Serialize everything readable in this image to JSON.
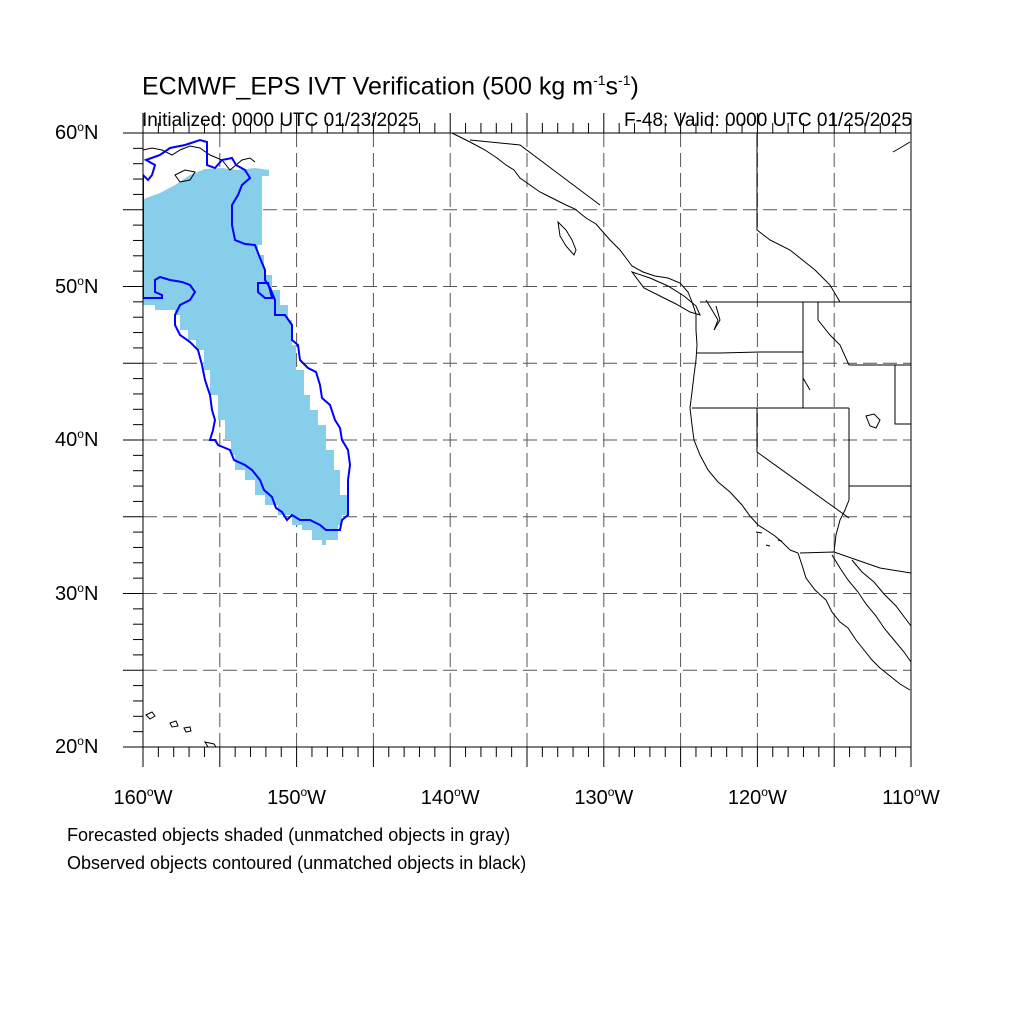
{
  "title": {
    "prefix": "ECMWF_EPS IVT Verification (500 kg m",
    "exp1": "-1",
    "mid": "s",
    "exp2": "-1",
    "suffix": ")"
  },
  "initialized": "Initialized: 0000 UTC 01/23/2025",
  "valid": "F-48: Valid: 0000 UTC 01/25/2025",
  "lat_labels": [
    {
      "text": "60",
      "hemi": "N"
    },
    {
      "text": "50",
      "hemi": "N"
    },
    {
      "text": "40",
      "hemi": "N"
    },
    {
      "text": "30",
      "hemi": "N"
    },
    {
      "text": "20",
      "hemi": "N"
    }
  ],
  "lon_labels": [
    {
      "text": "160",
      "hemi": "W"
    },
    {
      "text": "150",
      "hemi": "W"
    },
    {
      "text": "140",
      "hemi": "W"
    },
    {
      "text": "130",
      "hemi": "W"
    },
    {
      "text": "120",
      "hemi": "W"
    },
    {
      "text": "110",
      "hemi": "W"
    }
  ],
  "map": {
    "lon_range": [
      -160,
      -110
    ],
    "lat_range": [
      20,
      60
    ],
    "grid_spacing_deg": 5,
    "forecast_fill_color": "#87ceeb",
    "observed_contour_color": "#0000ff",
    "coast_color": "#000000"
  },
  "footer": {
    "line1": "Forecasted objects shaded (unmatched objects in gray)",
    "line2": "Observed objects contoured (unmatched objects in black)"
  }
}
